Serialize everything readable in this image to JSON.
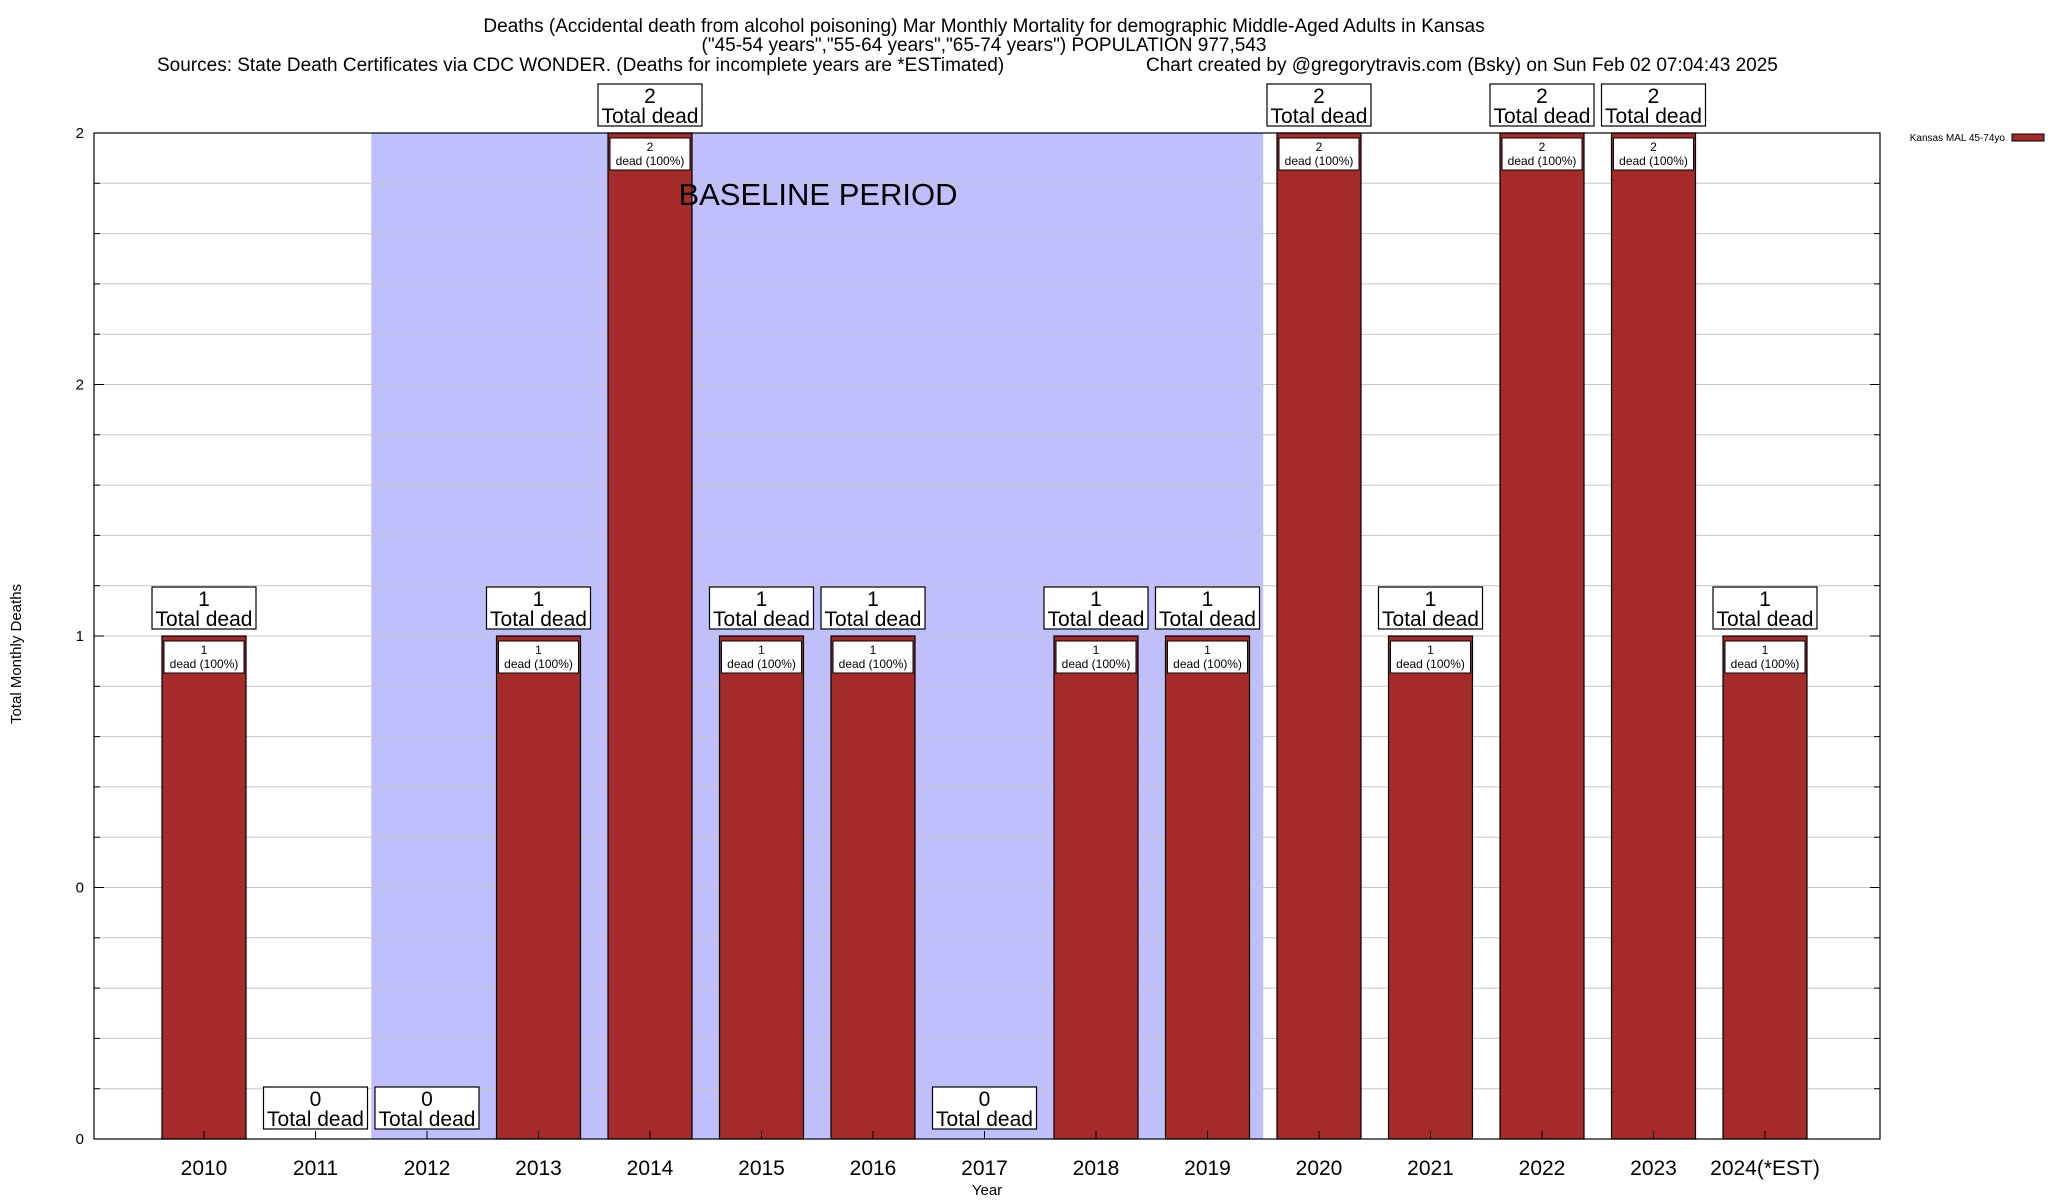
{
  "chart_data": {
    "type": "bar",
    "title_lines": [
      "Deaths (Accidental death from alcohol poisoning) Mar Monthly Mortality for demographic Middle-Aged Adults in Kansas",
      "(\"45-54 years\",\"55-64 years\",\"65-74 years\") POPULATION 977,543",
      "Sources: State Death Certificates via CDC WONDER. (Deaths for incomplete years are *ESTimated)",
      "Chart created by @gregorytravis.com (Bsky) on Sun Feb 02 07:04:43 2025"
    ],
    "xlabel": "Year",
    "ylabel": "Total Monthly Deaths",
    "categories": [
      "2010",
      "2011",
      "2012",
      "2013",
      "2014",
      "2015",
      "2016",
      "2017",
      "2018",
      "2019",
      "2020",
      "2021",
      "2022",
      "2023",
      "2024(*EST)"
    ],
    "series": [
      {
        "name": "Kansas MAL 45-74yo",
        "color": "#a52a2a",
        "values": [
          1,
          0,
          0,
          1,
          2,
          1,
          1,
          0,
          1,
          1,
          2,
          1,
          2,
          2,
          1
        ]
      }
    ],
    "total_labels": [
      "1",
      "0",
      "0",
      "1",
      "2",
      "1",
      "1",
      "0",
      "1",
      "1",
      "2",
      "1",
      "2",
      "2",
      "1"
    ],
    "total_suffix": "Total dead",
    "inner_labels": [
      [
        "1",
        "dead (100%)"
      ],
      null,
      null,
      [
        "1",
        "dead (100%)"
      ],
      [
        "2",
        "dead (100%)"
      ],
      [
        "1",
        "dead (100%)"
      ],
      [
        "1",
        "dead (100%)"
      ],
      null,
      [
        "1",
        "dead (100%)"
      ],
      [
        "1",
        "dead (100%)"
      ],
      [
        "2",
        "dead (100%)"
      ],
      [
        "1",
        "dead (100%)"
      ],
      [
        "2",
        "dead (100%)"
      ],
      [
        "2",
        "dead (100%)"
      ],
      [
        "1",
        "dead (100%)"
      ]
    ],
    "y_tick_labels": [
      "0",
      "0",
      "1",
      "2",
      "2"
    ],
    "y_tick_values": [
      0,
      0.5,
      1,
      1.5,
      2
    ],
    "ylim": [
      0,
      2
    ],
    "baseline_period": {
      "label": "BASELINE PERIOD",
      "from": "2012",
      "to": "2019",
      "color": "#bfbffd"
    },
    "grid": true,
    "legend_position": "top-right",
    "bar_color": "#a52a2a"
  }
}
